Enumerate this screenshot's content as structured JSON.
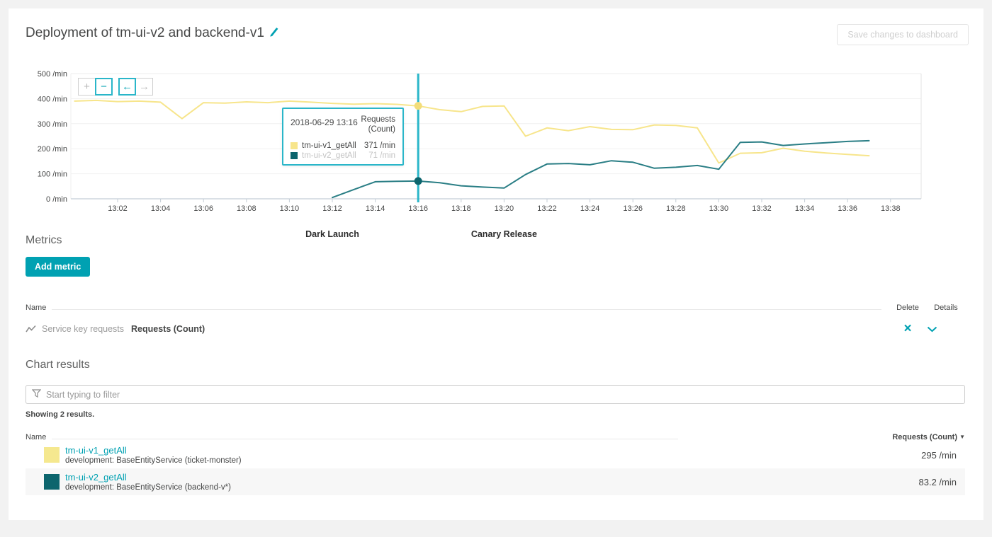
{
  "page": {
    "title": "Deployment of tm-ui-v2 and backend-v1",
    "save_button_label": "Save changes to dashboard"
  },
  "colors": {
    "accent_teal": "#00a1b2",
    "cursor_teal": "#2ab6c9",
    "series1_yellow": "#f7e58b",
    "series2_teal_line": "#2a7e85",
    "series2_teal_dark": "#0c656d",
    "grid_line": "#f1f1f1",
    "axis_line": "#c4ced6"
  },
  "chart": {
    "toolbar": {
      "zoom_in": "+",
      "zoom_out": "−",
      "pan_left": "←",
      "pan_right": "→"
    },
    "tooltip": {
      "timestamp": "2018-06-29 13:16",
      "metric": "Requests (Count)",
      "rows": [
        {
          "name": "tm-ui-v1_getAll",
          "value": "371 /min",
          "dimmed": false
        },
        {
          "name": "tm-ui-v2_getAll",
          "value": "71 /min",
          "dimmed": true
        }
      ]
    }
  },
  "chart_data": {
    "type": "line",
    "unit": "/min",
    "ylim": [
      0,
      500
    ],
    "y_ticks": [
      0,
      100,
      200,
      300,
      400,
      500
    ],
    "y_tick_suffix": " /min",
    "x_base_time": "13:00",
    "x_ticks": [
      {
        "m": 2,
        "label": "13:02"
      },
      {
        "m": 4,
        "label": "13:04"
      },
      {
        "m": 6,
        "label": "13:06"
      },
      {
        "m": 8,
        "label": "13:08"
      },
      {
        "m": 10,
        "label": "13:10"
      },
      {
        "m": 12,
        "label": "13:12"
      },
      {
        "m": 14,
        "label": "13:14"
      },
      {
        "m": 16,
        "label": "13:16"
      },
      {
        "m": 18,
        "label": "13:18"
      },
      {
        "m": 20,
        "label": "13:20"
      },
      {
        "m": 22,
        "label": "13:22"
      },
      {
        "m": 24,
        "label": "13:24"
      },
      {
        "m": 26,
        "label": "13:26"
      },
      {
        "m": 28,
        "label": "13:28"
      },
      {
        "m": 30,
        "label": "13:30"
      },
      {
        "m": 32,
        "label": "13:32"
      },
      {
        "m": 34,
        "label": "13:34"
      },
      {
        "m": 36,
        "label": "13:36"
      },
      {
        "m": 38,
        "label": "13:38"
      }
    ],
    "grid": true,
    "legend_position": "none",
    "cursor_minute": 16,
    "annotations": [
      {
        "minute": 12,
        "label": "Dark Launch"
      },
      {
        "minute": 20,
        "label": "Canary Release"
      }
    ],
    "series": [
      {
        "name": "tm-ui-v1_getAll",
        "color": "#f7e58b",
        "marker_color": "#f3dd7a",
        "start_minute": 0,
        "values": [
          390,
          393,
          388,
          390,
          386,
          320,
          384,
          382,
          387,
          384,
          390,
          386,
          381,
          378,
          380,
          377,
          371,
          356,
          348,
          369,
          371,
          250,
          283,
          272,
          288,
          277,
          276,
          295,
          293,
          283,
          143,
          182,
          184,
          202,
          190,
          183,
          177,
          172
        ]
      },
      {
        "name": "tm-ui-v2_getAll",
        "color": "#2a7e85",
        "marker_color": "#0c656d",
        "start_minute": 12,
        "values": [
          5,
          37,
          68,
          70,
          71,
          64,
          52,
          47,
          43,
          97,
          139,
          141,
          136,
          152,
          146,
          122,
          126,
          133,
          118,
          225,
          227,
          213,
          219,
          224,
          229,
          232
        ]
      }
    ]
  },
  "metrics": {
    "heading": "Metrics",
    "add_button_label": "Add metric",
    "table": {
      "name_header": "Name",
      "delete_header": "Delete",
      "details_header": "Details",
      "rows": [
        {
          "source": "Service key requests",
          "metric": "Requests (Count)"
        }
      ]
    }
  },
  "chart_results": {
    "heading": "Chart results",
    "filter_placeholder": "Start typing to filter",
    "summary": "Showing 2 results.",
    "table": {
      "name_header": "Name",
      "value_header": "Requests (Count)",
      "sort_indicator": "▼",
      "rows": [
        {
          "name": "tm-ui-v1_getAll",
          "detail": "development: BaseEntityService (ticket-monster)",
          "value": "295 /min",
          "color": "#f5e88f"
        },
        {
          "name": "tm-ui-v2_getAll",
          "detail": "development: BaseEntityService (backend-v*)",
          "value": "83.2 /min",
          "color": "#0c656d"
        }
      ]
    }
  }
}
